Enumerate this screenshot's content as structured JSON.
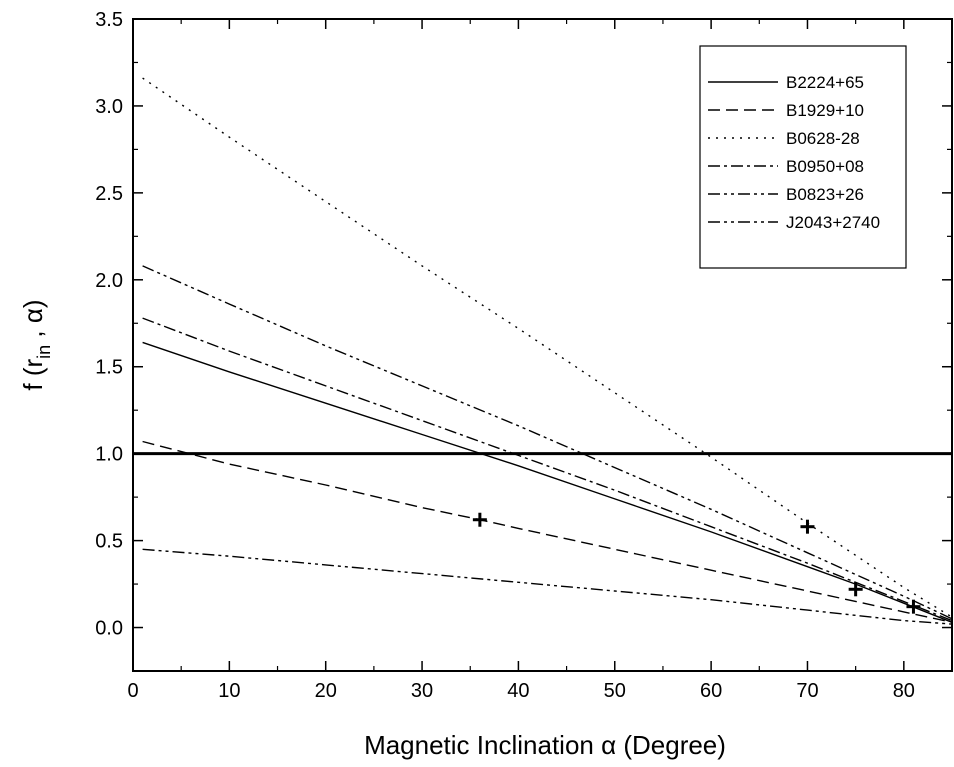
{
  "chart_data": {
    "type": "line",
    "title": "",
    "xlabel": "Magnetic Inclination α (Degree)",
    "ylabel_parts": {
      "main": "f (r",
      "sub": "in",
      "tail": " , α)"
    },
    "xlim": [
      0,
      85
    ],
    "ylim": [
      -0.25,
      3.5
    ],
    "xticks": [
      0,
      10,
      20,
      30,
      40,
      50,
      60,
      70,
      80
    ],
    "xtick_labels": [
      "0",
      "10",
      "20",
      "30",
      "40",
      "50",
      "60",
      "70",
      "80"
    ],
    "yticks": [
      0.0,
      0.5,
      1.0,
      1.5,
      2.0,
      2.5,
      3.0,
      3.5
    ],
    "ytick_labels": [
      "0.0",
      "0.5",
      "1.0",
      "1.5",
      "2.0",
      "2.5",
      "3.0",
      "3.5"
    ],
    "grid": false,
    "legend_position": "top-right",
    "reference_line": {
      "y": 1.0
    },
    "series": [
      {
        "name": "B2224+65",
        "dash": "solid",
        "x": [
          1,
          10,
          20,
          30,
          40,
          50,
          60,
          70,
          75,
          80,
          85
        ],
        "y": [
          1.64,
          1.47,
          1.29,
          1.11,
          0.93,
          0.74,
          0.55,
          0.35,
          0.25,
          0.14,
          0.03
        ]
      },
      {
        "name": "B1929+10",
        "dash": "dash",
        "x": [
          1,
          10,
          20,
          30,
          36,
          40,
          50,
          60,
          70,
          80,
          85
        ],
        "y": [
          1.07,
          0.94,
          0.82,
          0.69,
          0.62,
          0.57,
          0.45,
          0.33,
          0.21,
          0.09,
          0.03
        ]
      },
      {
        "name": "B0628-28",
        "dash": "dot",
        "x": [
          1,
          10,
          20,
          30,
          40,
          50,
          60,
          70,
          80,
          85
        ],
        "y": [
          3.16,
          2.82,
          2.45,
          2.08,
          1.72,
          1.35,
          0.98,
          0.6,
          0.23,
          0.06
        ]
      },
      {
        "name": "B0950+08",
        "dash": "dashdot",
        "x": [
          1,
          10,
          20,
          30,
          40,
          50,
          60,
          70,
          80,
          85
        ],
        "y": [
          1.78,
          1.59,
          1.39,
          1.19,
          0.99,
          0.79,
          0.58,
          0.37,
          0.15,
          0.04
        ]
      },
      {
        "name": "B0823+26",
        "dash": "dashdotdot",
        "x": [
          1,
          10,
          20,
          30,
          40,
          50,
          60,
          70,
          80,
          85
        ],
        "y": [
          2.08,
          1.86,
          1.62,
          1.39,
          1.16,
          0.92,
          0.68,
          0.43,
          0.18,
          0.05
        ]
      },
      {
        "name": "J2043+2740",
        "dash": "dashdotdot",
        "x": [
          1,
          10,
          20,
          30,
          40,
          50,
          60,
          70,
          80,
          85
        ],
        "y": [
          0.45,
          0.41,
          0.36,
          0.31,
          0.26,
          0.21,
          0.16,
          0.1,
          0.04,
          0.02
        ]
      }
    ],
    "markers": [
      {
        "x": 36,
        "y": 0.62
      },
      {
        "x": 70,
        "y": 0.58
      },
      {
        "x": 75,
        "y": 0.22
      },
      {
        "x": 81,
        "y": 0.12
      }
    ]
  }
}
